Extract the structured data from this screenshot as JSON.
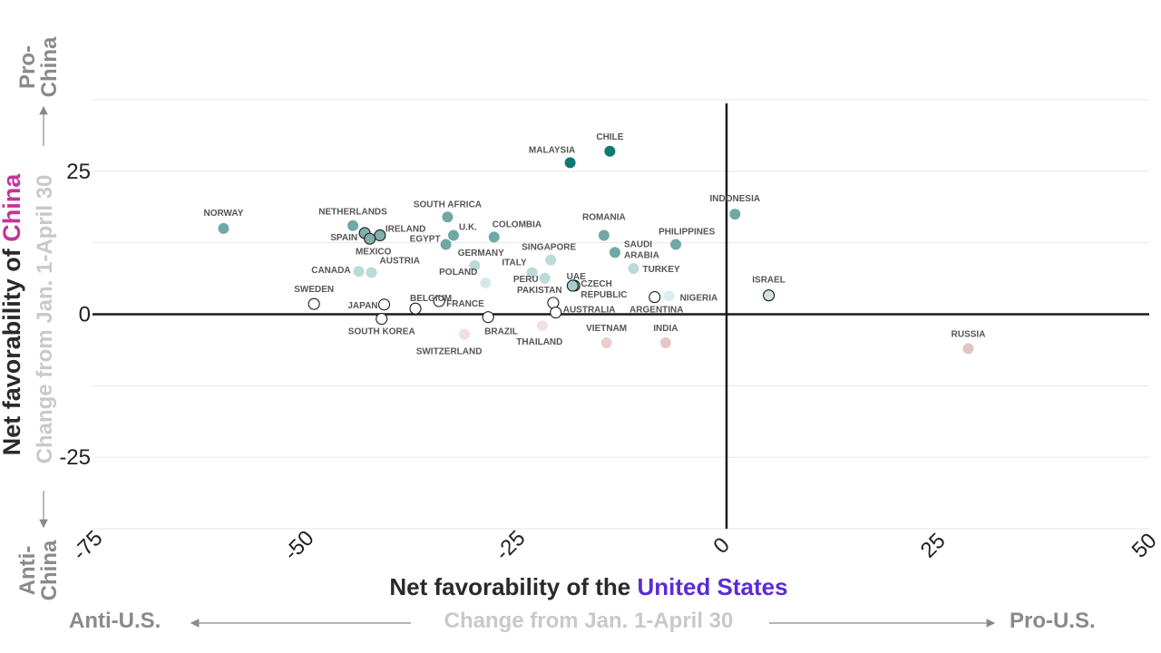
{
  "chart_data": {
    "type": "scatter",
    "xlabel_prefix": "Net favorability of the ",
    "xlabel_accent": "United States",
    "xlabel_accent_color": "#5b2bd6",
    "ylabel_prefix": "Net favorability of ",
    "ylabel_accent": "China",
    "ylabel_accent_color": "#c2359a",
    "x_sub": "Change from Jan. 1-April 30",
    "y_sub": "Change from Jan. 1-April 30",
    "x_left_label": "Anti-U.S.",
    "x_right_label": "Pro-U.S.",
    "y_top_label": "Pro-\nChina",
    "y_bottom_label": "Anti-\nChina",
    "xlim": [
      -75,
      50
    ],
    "ylim": [
      -37.5,
      37.5
    ],
    "xticks": [
      "-75",
      "-50",
      "-25",
      "0",
      "25",
      "50"
    ],
    "yticks": [
      "25",
      "0",
      "-25"
    ],
    "grid": true,
    "points": [
      {
        "name": "CHILE",
        "x": -13.8,
        "y": 28.5
      },
      {
        "name": "MALAYSIA",
        "x": -18.5,
        "y": 26.5
      },
      {
        "name": "INDONESIA",
        "x": 1.0,
        "y": 17.5
      },
      {
        "name": "NORWAY",
        "x": -59.5,
        "y": 15.0
      },
      {
        "name": "NETHERLANDS",
        "x": -44.2,
        "y": 15.5
      },
      {
        "name": "SPAIN",
        "x": -42.8,
        "y": 14.2
      },
      {
        "name": "IRELAND",
        "x": -41.0,
        "y": 13.8
      },
      {
        "name": "MEXICO",
        "x": -42.2,
        "y": 13.2
      },
      {
        "name": "SOUTH AFRICA",
        "x": -33.0,
        "y": 17.0
      },
      {
        "name": "U.K.",
        "x": -32.3,
        "y": 13.8
      },
      {
        "name": "EGYPT",
        "x": -33.2,
        "y": 12.2
      },
      {
        "name": "COLOMBIA",
        "x": -27.5,
        "y": 13.5
      },
      {
        "name": "ROMANIA",
        "x": -14.5,
        "y": 13.8
      },
      {
        "name": "SAUDI ARABIA",
        "x": -13.2,
        "y": 10.8
      },
      {
        "name": "PHILIPPINES",
        "x": -6.0,
        "y": 12.2
      },
      {
        "name": "SINGAPORE",
        "x": -20.8,
        "y": 9.5
      },
      {
        "name": "GERMANY",
        "x": -29.8,
        "y": 8.5
      },
      {
        "name": "CANADA",
        "x": -43.5,
        "y": 7.5
      },
      {
        "name": "AUSTRIA",
        "x": -42.0,
        "y": 7.3
      },
      {
        "name": "TURKEY",
        "x": -11.0,
        "y": 8.0
      },
      {
        "name": "ITALY",
        "x": -23.0,
        "y": 7.3
      },
      {
        "name": "PERU",
        "x": -21.5,
        "y": 6.3
      },
      {
        "name": "POLAND",
        "x": -28.5,
        "y": 5.5
      },
      {
        "name": "UAE",
        "x": -18.0,
        "y": 5.0
      },
      {
        "name": "CZECH REPUBLIC",
        "x": -18.2,
        "y": 5.0
      },
      {
        "name": "ISRAEL",
        "x": 5.0,
        "y": 3.3
      },
      {
        "name": "NIGERIA",
        "x": -6.8,
        "y": 3.2
      },
      {
        "name": "ARGENTINA",
        "x": -8.5,
        "y": 3.0
      },
      {
        "name": "SWEDEN",
        "x": -48.8,
        "y": 1.8
      },
      {
        "name": "JAPAN",
        "x": -40.5,
        "y": 1.7
      },
      {
        "name": "BELGIUM",
        "x": -36.8,
        "y": 1.0
      },
      {
        "name": "FRANCE",
        "x": -34.0,
        "y": 2.3
      },
      {
        "name": "PAKISTAN",
        "x": -20.5,
        "y": 2.0
      },
      {
        "name": "AUSTRALIA",
        "x": -20.2,
        "y": 0.3
      },
      {
        "name": "SOUTH KOREA",
        "x": -40.8,
        "y": -0.8
      },
      {
        "name": "BRAZIL",
        "x": -28.2,
        "y": -0.5
      },
      {
        "name": "THAILAND",
        "x": -21.8,
        "y": -2.0
      },
      {
        "name": "SWITZERLAND",
        "x": -31.0,
        "y": -3.5
      },
      {
        "name": "VIETNAM",
        "x": -14.2,
        "y": -5.0
      },
      {
        "name": "INDIA",
        "x": -7.2,
        "y": -5.0
      },
      {
        "name": "RUSSIA",
        "x": 28.6,
        "y": -6.0
      }
    ]
  }
}
